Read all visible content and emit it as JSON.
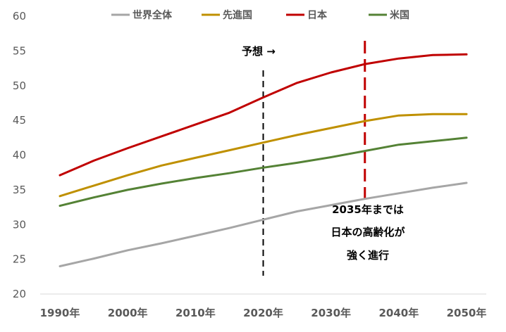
{
  "chart_data": {
    "type": "line",
    "title": "",
    "xlabel": "",
    "ylabel": "",
    "ylim": [
      20,
      60
    ],
    "y_ticks": [
      20,
      25,
      30,
      35,
      40,
      45,
      50,
      55,
      60
    ],
    "x_ticks": [
      1990,
      2000,
      2010,
      2020,
      2030,
      2040,
      2050
    ],
    "x_tick_labels": [
      "1990年",
      "2000年",
      "2010年",
      "2020年",
      "2030年",
      "2040年",
      "2050年"
    ],
    "x": [
      1990,
      1995,
      2000,
      2005,
      2010,
      2015,
      2020,
      2025,
      2030,
      2035,
      2040,
      2045,
      2050
    ],
    "grid": "horizontal",
    "legend": "top",
    "series": [
      {
        "name": "世界全体",
        "color": "#a6a6a6",
        "values": [
          24.0,
          25.1,
          26.3,
          27.3,
          28.4,
          29.5,
          30.7,
          31.9,
          32.8,
          33.7,
          34.5,
          35.3,
          36.0
        ]
      },
      {
        "name": "先進国",
        "color": "#bf9000",
        "values": [
          34.1,
          35.6,
          37.1,
          38.5,
          39.6,
          40.7,
          41.8,
          42.9,
          43.9,
          44.9,
          45.7,
          45.9,
          45.9
        ]
      },
      {
        "name": "日本",
        "color": "#c00000",
        "values": [
          37.1,
          39.2,
          41.0,
          42.7,
          44.4,
          46.1,
          48.3,
          50.4,
          51.9,
          53.1,
          53.9,
          54.4,
          54.5
        ]
      },
      {
        "name": "米国",
        "color": "#548235",
        "values": [
          32.7,
          33.9,
          35.0,
          35.9,
          36.7,
          37.4,
          38.2,
          38.9,
          39.7,
          40.6,
          41.5,
          42.0,
          42.5
        ]
      }
    ],
    "annotations": {
      "forecast_label": "予想 →",
      "forecast_line_x": 2020,
      "highlight_line_x": 2035,
      "note_lines": [
        "2035年までは",
        "日本の高齢化が",
        "強く進行"
      ]
    }
  }
}
